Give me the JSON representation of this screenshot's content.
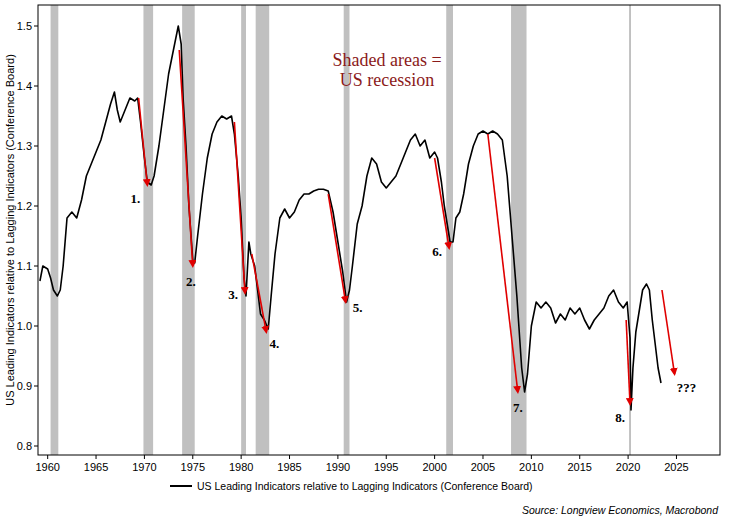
{
  "chart_data": {
    "type": "line",
    "y_label": "US Leading Indicators relative to Lagging Indicators (Conference Board)",
    "source": "Source: Longview Economics, Macrobond",
    "note": [
      "Shaded areas =",
      "US recession"
    ],
    "legend": "bottom",
    "grid": false,
    "xlim": [
      1959,
      2029.5
    ],
    "xticks": [
      1960,
      1965,
      1970,
      1975,
      1980,
      1985,
      1990,
      1995,
      2000,
      2005,
      2010,
      2015,
      2020,
      2025
    ],
    "ylim": [
      0.785,
      1.535
    ],
    "yticks": [
      0.8,
      0.9,
      {
        "value": 1,
        "label": "1.0"
      },
      1.1,
      1.2,
      1.3,
      1.4,
      1.5
    ],
    "recessions": [
      [
        1960.3,
        1961.1
      ],
      [
        1969.9,
        1970.9
      ],
      [
        1973.9,
        1975.2
      ],
      [
        1980.0,
        1980.5
      ],
      [
        1981.5,
        1982.9
      ],
      [
        1990.6,
        1991.2
      ],
      [
        2001.2,
        2001.9
      ],
      [
        2007.9,
        2009.5
      ],
      [
        2020.1,
        2020.3
      ]
    ],
    "x": [
      1959.2,
      1959.5,
      1960,
      1960.3,
      1960.6,
      1961,
      1961.3,
      1961.6,
      1962,
      1962.5,
      1963,
      1963.5,
      1964,
      1964.5,
      1965,
      1965.5,
      1966,
      1966.5,
      1966.9,
      1967.2,
      1967.5,
      1968,
      1968.5,
      1969,
      1969.3,
      1969.6,
      1970,
      1970.3,
      1970.7,
      1971,
      1971.5,
      1972,
      1972.5,
      1973,
      1973.5,
      1973.8,
      1974,
      1974.3,
      1974.6,
      1975,
      1975.2,
      1975.5,
      1976,
      1976.5,
      1977,
      1977.5,
      1978,
      1978.5,
      1979,
      1979.3,
      1979.7,
      1980,
      1980.3,
      1980.5,
      1980.8,
      1981,
      1981.4,
      1981.7,
      1982,
      1982.4,
      1982.8,
      1983.1,
      1983.5,
      1984,
      1984.5,
      1985,
      1985.5,
      1986,
      1986.5,
      1987,
      1987.5,
      1988,
      1988.5,
      1989,
      1989.5,
      1990,
      1990.5,
      1990.9,
      1991.2,
      1991.5,
      1992,
      1992.5,
      1993,
      1993.5,
      1994,
      1994.5,
      1995,
      1995.5,
      1996,
      1996.5,
      1997,
      1997.5,
      1998,
      1998.5,
      1999,
      1999.5,
      2000,
      2000.3,
      2000.7,
      2001,
      2001.3,
      2001.6,
      2001.9,
      2002.2,
      2002.6,
      2003,
      2003.5,
      2004,
      2004.5,
      2005,
      2005.5,
      2006,
      2006.5,
      2007,
      2007.5,
      2008,
      2008.5,
      2009,
      2009.3,
      2009.6,
      2010,
      2010.5,
      2011,
      2011.5,
      2012,
      2012.5,
      2013,
      2013.5,
      2014,
      2014.5,
      2015,
      2015.5,
      2016,
      2016.5,
      2017,
      2017.5,
      2018,
      2018.5,
      2019,
      2019.5,
      2019.9,
      2020.2,
      2020.3,
      2020.5,
      2020.8,
      2021.1,
      2021.5,
      2021.9,
      2022.2,
      2022.5,
      2022.8,
      2023.1,
      2023.4
    ],
    "series": [
      {
        "name": "US Leading Indicators relative to Lagging Indicators (Conference Board)",
        "color": "#000000",
        "values": [
          1.075,
          1.1,
          1.095,
          1.08,
          1.06,
          1.05,
          1.06,
          1.1,
          1.18,
          1.19,
          1.18,
          1.21,
          1.25,
          1.27,
          1.29,
          1.31,
          1.34,
          1.37,
          1.39,
          1.36,
          1.34,
          1.36,
          1.38,
          1.375,
          1.38,
          1.34,
          1.28,
          1.24,
          1.235,
          1.25,
          1.3,
          1.36,
          1.42,
          1.46,
          1.5,
          1.47,
          1.38,
          1.3,
          1.2,
          1.11,
          1.105,
          1.15,
          1.22,
          1.28,
          1.32,
          1.34,
          1.35,
          1.345,
          1.35,
          1.32,
          1.25,
          1.18,
          1.08,
          1.05,
          1.14,
          1.12,
          1.1,
          1.06,
          1.02,
          1.01,
          0.995,
          1.05,
          1.12,
          1.18,
          1.195,
          1.18,
          1.19,
          1.21,
          1.22,
          1.22,
          1.225,
          1.228,
          1.228,
          1.225,
          1.19,
          1.14,
          1.09,
          1.04,
          1.06,
          1.1,
          1.17,
          1.2,
          1.25,
          1.28,
          1.27,
          1.24,
          1.23,
          1.24,
          1.25,
          1.27,
          1.29,
          1.31,
          1.32,
          1.3,
          1.31,
          1.28,
          1.29,
          1.28,
          1.24,
          1.2,
          1.17,
          1.14,
          1.14,
          1.18,
          1.19,
          1.22,
          1.27,
          1.3,
          1.32,
          1.325,
          1.32,
          1.325,
          1.32,
          1.31,
          1.25,
          1.15,
          1.05,
          0.93,
          0.89,
          0.92,
          1.0,
          1.04,
          1.03,
          1.04,
          1.03,
          1.005,
          1.02,
          1.01,
          1.03,
          1.02,
          1.03,
          1.01,
          0.995,
          1.01,
          1.02,
          1.03,
          1.05,
          1.06,
          1.04,
          1.03,
          1.04,
          0.98,
          0.86,
          0.93,
          0.99,
          1.02,
          1.06,
          1.07,
          1.06,
          1.01,
          0.97,
          0.93,
          0.905
        ]
      }
    ],
    "arrows": [
      {
        "label": "1.",
        "from": [
          1969.4,
          1.38
        ],
        "to": [
          1970.3,
          1.235
        ]
      },
      {
        "label": "2.",
        "from": [
          1973.6,
          1.46
        ],
        "to": [
          1975.0,
          1.1
        ]
      },
      {
        "label": "3.",
        "from": [
          1979.3,
          1.34
        ],
        "to": [
          1980.4,
          1.055
        ]
      },
      {
        "label": "4.",
        "from": [
          1981.1,
          1.12
        ],
        "to": [
          1982.6,
          0.99
        ]
      },
      {
        "label": "5.",
        "from": [
          1989.0,
          1.22
        ],
        "to": [
          1990.8,
          1.04
        ]
      },
      {
        "label": "6.",
        "from": [
          2000.0,
          1.28
        ],
        "to": [
          2001.5,
          1.13
        ]
      },
      {
        "label": "7.",
        "from": [
          2005.5,
          1.32
        ],
        "to": [
          2008.6,
          0.89
        ]
      },
      {
        "label": "8.",
        "from": [
          2019.8,
          1.01
        ],
        "to": [
          2020.2,
          0.87
        ]
      },
      {
        "label": "???",
        "from": [
          2023.5,
          1.06
        ],
        "to": [
          2024.8,
          0.92
        ]
      }
    ],
    "arrow_color": "#e00000"
  }
}
